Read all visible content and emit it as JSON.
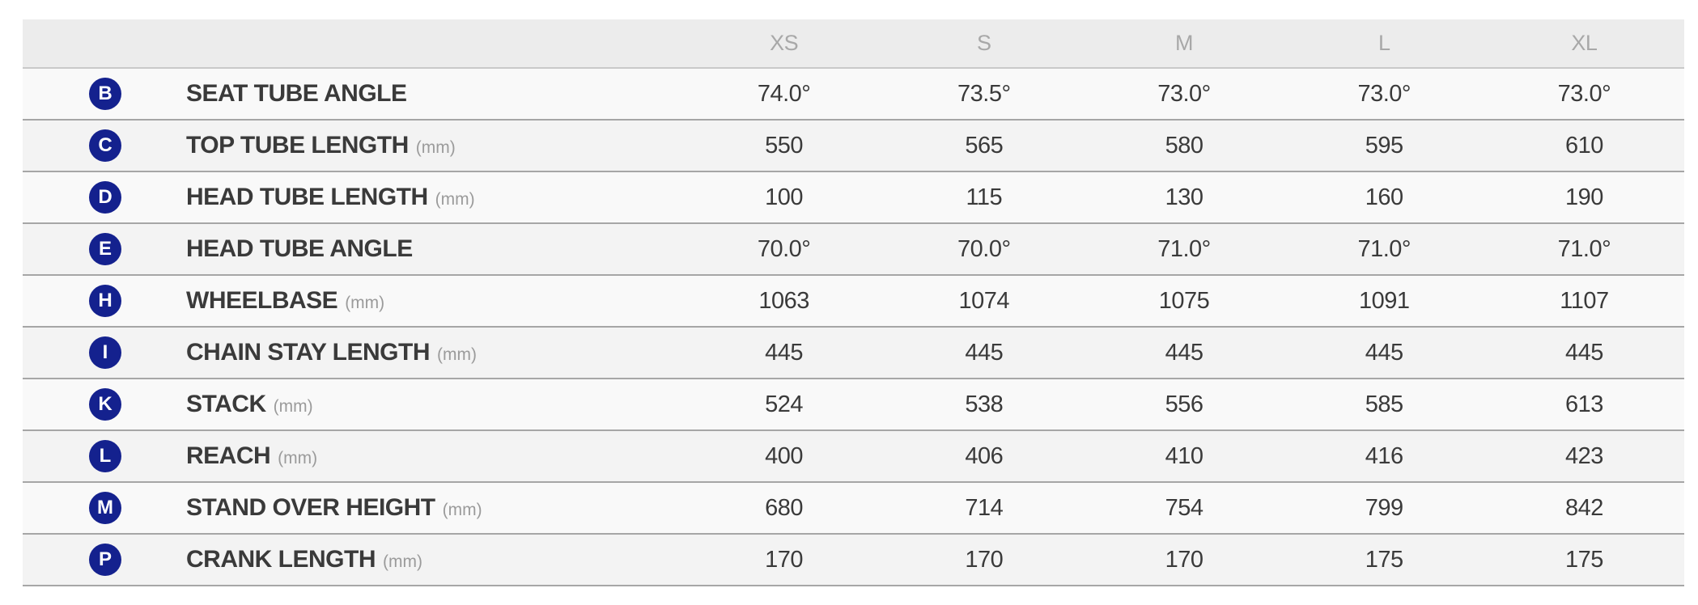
{
  "table": {
    "column_headers": [
      "XS",
      "S",
      "M",
      "L",
      "XL"
    ],
    "rows": [
      {
        "badge": "B",
        "label": "SEAT TUBE ANGLE",
        "unit": "",
        "values": [
          "74.0°",
          "73.5°",
          "73.0°",
          "73.0°",
          "73.0°"
        ]
      },
      {
        "badge": "C",
        "label": "TOP TUBE LENGTH",
        "unit": "(mm)",
        "values": [
          "550",
          "565",
          "580",
          "595",
          "610"
        ]
      },
      {
        "badge": "D",
        "label": "HEAD TUBE LENGTH",
        "unit": "(mm)",
        "values": [
          "100",
          "115",
          "130",
          "160",
          "190"
        ]
      },
      {
        "badge": "E",
        "label": "HEAD TUBE ANGLE",
        "unit": "",
        "values": [
          "70.0°",
          "70.0°",
          "71.0°",
          "71.0°",
          "71.0°"
        ]
      },
      {
        "badge": "H",
        "label": "WHEELBASE",
        "unit": "(mm)",
        "values": [
          "1063",
          "1074",
          "1075",
          "1091",
          "1107"
        ]
      },
      {
        "badge": "I",
        "label": "CHAIN STAY LENGTH",
        "unit": "(mm)",
        "values": [
          "445",
          "445",
          "445",
          "445",
          "445"
        ]
      },
      {
        "badge": "K",
        "label": "STACK",
        "unit": "(mm)",
        "values": [
          "524",
          "538",
          "556",
          "585",
          "613"
        ]
      },
      {
        "badge": "L",
        "label": "REACH",
        "unit": "(mm)",
        "values": [
          "400",
          "406",
          "410",
          "416",
          "423"
        ]
      },
      {
        "badge": "M",
        "label": "STAND OVER HEIGHT",
        "unit": "(mm)",
        "values": [
          "680",
          "714",
          "754",
          "799",
          "842"
        ]
      },
      {
        "badge": "P",
        "label": "CRANK LENGTH",
        "unit": "(mm)",
        "values": [
          "170",
          "170",
          "170",
          "175",
          "175"
        ]
      }
    ],
    "colors": {
      "badge_navy": "#14218e",
      "header_bg": "#ececec",
      "row_light": "#f9f9f9",
      "row_dark": "#f3f3f3",
      "row_border": "#a6a6a6",
      "header_text": "#a8a8a8",
      "body_text": "#3a3a3a",
      "unit_text": "#9b9b9b"
    }
  }
}
